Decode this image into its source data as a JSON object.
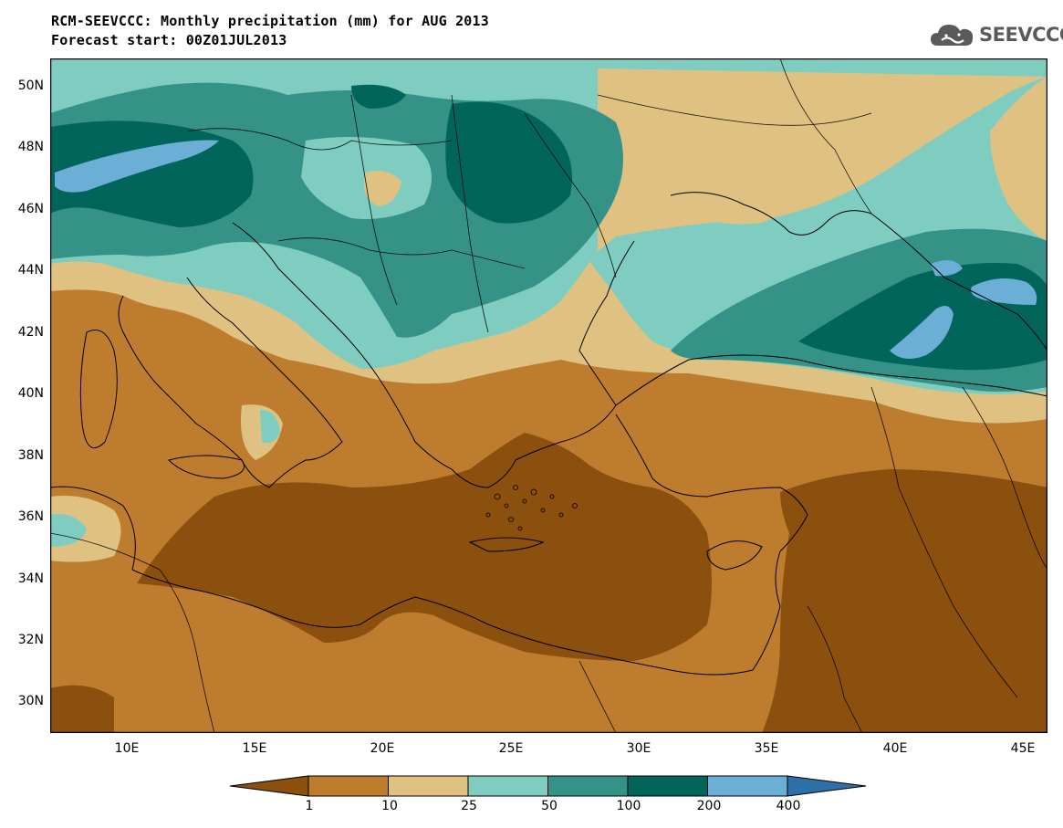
{
  "title_line1": "RCM-SEEVCCC: Monthly precipitation (mm) for AUG 2013",
  "title_line2": "Forecast start: 00Z01JUL2013",
  "logo_text": "SEEVCCC",
  "latitude_labels": [
    "50N",
    "48N",
    "46N",
    "44N",
    "42N",
    "40N",
    "38N",
    "36N",
    "34N",
    "32N",
    "30N"
  ],
  "longitude_labels": [
    "10E",
    "15E",
    "20E",
    "25E",
    "30E",
    "35E",
    "40E",
    "45E"
  ],
  "legend": {
    "labels": [
      "1",
      "10",
      "25",
      "50",
      "100",
      "200",
      "400"
    ],
    "colors": [
      "#8B4F0E",
      "#BE7C2E",
      "#DFC282",
      "#7ECDC0",
      "#359287",
      "#02655B",
      "#6BAED6",
      "#2F6FA8"
    ]
  },
  "colors": {
    "very_dry": "#8B4F0E",
    "dry": "#BE7C2E",
    "moderate": "#DFC282",
    "wet": "#7ECDC0",
    "wetter": "#359287",
    "very_wet": "#02655B",
    "extreme": "#6BAED6"
  }
}
